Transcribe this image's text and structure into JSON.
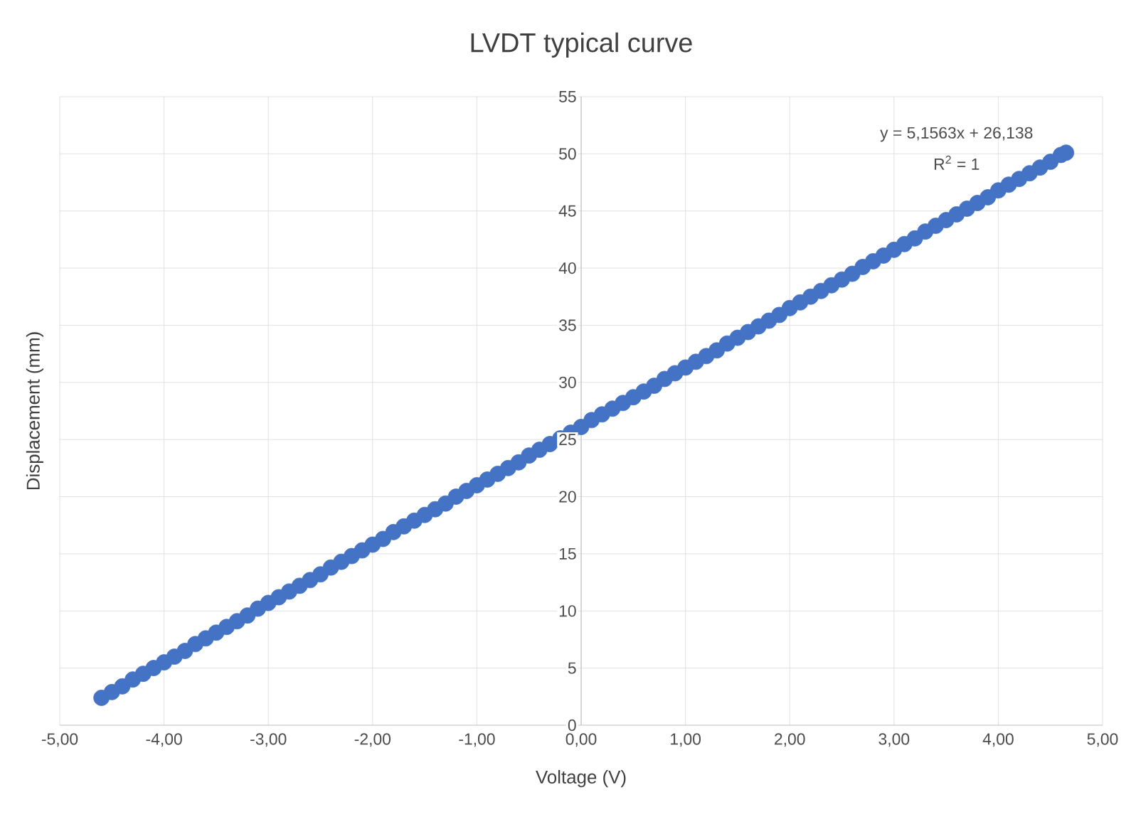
{
  "chart_data": {
    "type": "scatter",
    "title": "LVDT typical curve",
    "xlabel": "Voltage (V)",
    "ylabel": "Displacement (mm)",
    "annotations": [
      "y = 5,1563x + 26,138",
      "R$^{2}$ = 1"
    ],
    "marker": "circle",
    "grid": true,
    "xlim": [
      -5,
      5
    ],
    "ylim": [
      0,
      55
    ],
    "xticks": [
      {
        "value": -5,
        "label": "-5,00"
      },
      {
        "value": -4,
        "label": "-4,00"
      },
      {
        "value": -3,
        "label": "-3,00"
      },
      {
        "value": -2,
        "label": "-2,00"
      },
      {
        "value": -1,
        "label": "-1,00"
      },
      {
        "value": 0,
        "label": "0,00"
      },
      {
        "value": 1,
        "label": "1,00"
      },
      {
        "value": 2,
        "label": "2,00"
      },
      {
        "value": 3,
        "label": "3,00"
      },
      {
        "value": 4,
        "label": "4,00"
      },
      {
        "value": 5,
        "label": "5,00"
      }
    ],
    "yticks": [
      0,
      5,
      10,
      15,
      20,
      25,
      30,
      35,
      40,
      45,
      50,
      55
    ],
    "series": [
      {
        "color": "#4472c4",
        "x": [
          -4.6,
          -4.5,
          -4.4,
          -4.3,
          -4.2,
          -4.1,
          -4.0,
          -3.9,
          -3.8,
          -3.7,
          -3.6,
          -3.5,
          -3.4,
          -3.3,
          -3.2,
          -3.1,
          -3.0,
          -2.9,
          -2.8,
          -2.7,
          -2.6,
          -2.5,
          -2.4,
          -2.3,
          -2.2,
          -2.1,
          -2.0,
          -1.9,
          -1.8,
          -1.7,
          -1.6,
          -1.5,
          -1.4,
          -1.3,
          -1.2,
          -1.1,
          -1.0,
          -0.9,
          -0.8,
          -0.7,
          -0.6,
          -0.5,
          -0.4,
          -0.3,
          -0.2,
          -0.1,
          0.0,
          0.1,
          0.2,
          0.3,
          0.4,
          0.5,
          0.6,
          0.7,
          0.8,
          0.9,
          1.0,
          1.1,
          1.2,
          1.3,
          1.4,
          1.5,
          1.6,
          1.7,
          1.8,
          1.9,
          2.0,
          2.1,
          2.2,
          2.3,
          2.4,
          2.5,
          2.6,
          2.7,
          2.8,
          2.9,
          3.0,
          3.1,
          3.2,
          3.3,
          3.4,
          3.5,
          3.6,
          3.7,
          3.8,
          3.9,
          4.0,
          4.1,
          4.2,
          4.3,
          4.4,
          4.5,
          4.6,
          4.65
        ],
        "values": [
          2.4,
          2.9,
          3.4,
          4.0,
          4.5,
          5.0,
          5.5,
          6.0,
          6.5,
          7.1,
          7.6,
          8.1,
          8.6,
          9.1,
          9.6,
          10.2,
          10.7,
          11.2,
          11.7,
          12.2,
          12.7,
          13.2,
          13.8,
          14.3,
          14.8,
          15.3,
          15.8,
          16.3,
          16.9,
          17.4,
          17.9,
          18.4,
          18.9,
          19.4,
          20.0,
          20.5,
          21.0,
          21.5,
          22.0,
          22.5,
          23.0,
          23.6,
          24.1,
          24.6,
          25.1,
          25.6,
          26.1,
          26.7,
          27.2,
          27.7,
          28.2,
          28.7,
          29.2,
          29.7,
          30.3,
          30.8,
          31.3,
          31.8,
          32.3,
          32.8,
          33.4,
          33.9,
          34.4,
          34.9,
          35.4,
          35.9,
          36.5,
          37.0,
          37.5,
          38.0,
          38.5,
          39.0,
          39.5,
          40.1,
          40.6,
          41.1,
          41.6,
          42.1,
          42.6,
          43.2,
          43.7,
          44.2,
          44.7,
          45.2,
          45.7,
          46.2,
          46.8,
          47.3,
          47.8,
          48.3,
          48.8,
          49.3,
          49.9,
          50.1
        ]
      }
    ]
  }
}
